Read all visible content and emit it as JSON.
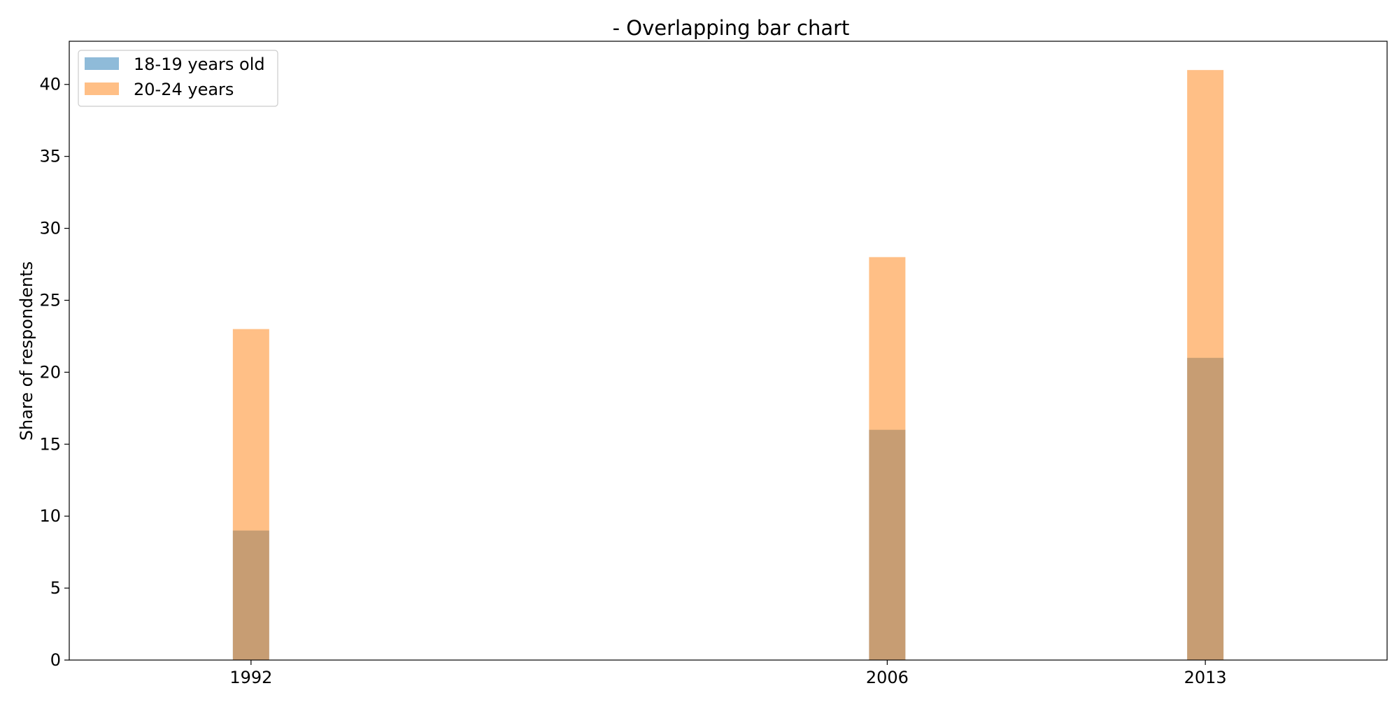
{
  "chart_data": {
    "type": "bar",
    "title": "- Overlapping bar chart",
    "xlabel": "",
    "ylabel": "Share of respondents",
    "x": [
      1992,
      2006,
      2013
    ],
    "x_tick_labels": [
      "1992",
      "2006",
      "2013"
    ],
    "xlim": [
      1988,
      2017
    ],
    "ylim": [
      0,
      43
    ],
    "y_ticks": [
      0,
      5,
      10,
      15,
      20,
      25,
      30,
      35,
      40
    ],
    "bar_width_years": 0.8,
    "overlap": true,
    "grid": false,
    "legend_position": "top-left",
    "series": [
      {
        "name": "18-19 years old",
        "values": [
          9,
          16,
          21
        ],
        "color": "#1f77b4",
        "alpha": 0.5
      },
      {
        "name": "20-24 years",
        "values": [
          23,
          28,
          41
        ],
        "color": "#ff7f0e",
        "alpha": 0.5
      }
    ]
  }
}
